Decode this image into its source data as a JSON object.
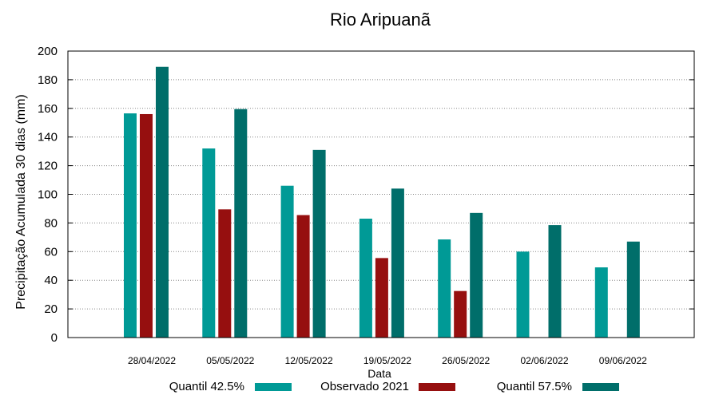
{
  "chart_data": {
    "type": "bar",
    "title": "Rio Aripuanã",
    "xlabel": "Data",
    "ylabel": "Precipitação Acumulada 30 dias (mm)",
    "ylim": [
      0,
      200
    ],
    "yticks": [
      0,
      20,
      40,
      60,
      80,
      100,
      120,
      140,
      160,
      180,
      200
    ],
    "grid": true,
    "legend_position": "bottom",
    "categories": [
      "28/04/2022",
      "05/05/2022",
      "12/05/2022",
      "19/05/2022",
      "26/05/2022",
      "02/06/2022",
      "09/06/2022"
    ],
    "series": [
      {
        "name": "Quantil 42.5%",
        "color": "#009a96",
        "values": [
          156.5,
          132,
          106,
          83,
          68.5,
          60,
          49
        ]
      },
      {
        "name": "Observado 2021",
        "color": "#960f0f",
        "values": [
          156,
          89.5,
          85.5,
          55.5,
          32.5,
          null,
          null
        ]
      },
      {
        "name": "Quantil 57.5%",
        "color": "#006e6a",
        "values": [
          189,
          159.5,
          131,
          104,
          87,
          78.5,
          67
        ]
      }
    ]
  }
}
